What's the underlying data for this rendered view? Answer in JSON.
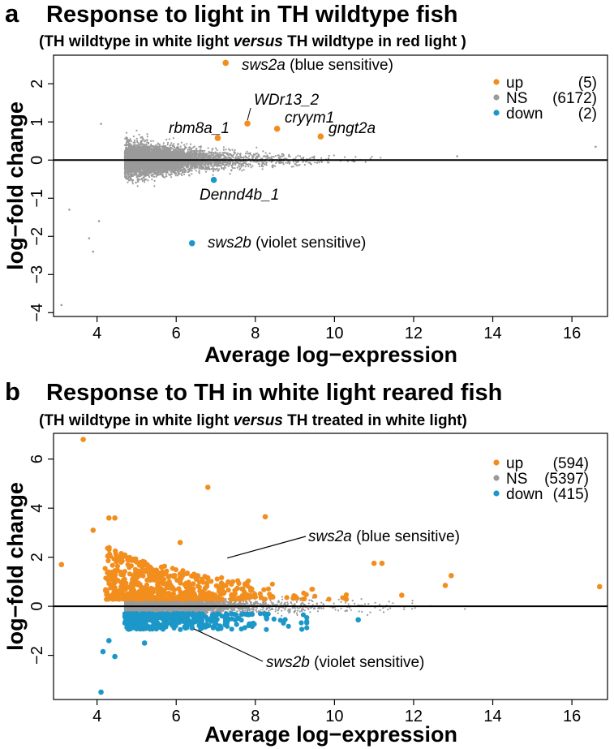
{
  "colors": {
    "up": "#f28e1e",
    "ns": "#9a9a9a",
    "down": "#1b97c8",
    "text": "#000000"
  },
  "panels": [
    {
      "letter": "a",
      "title": "Response to light in TH wildtype fish",
      "subtitle": {
        "open": "(TH wildtype in white light ",
        "italic": "versus",
        "close": " TH wildtype in red light )"
      },
      "legend": [
        {
          "label": "up",
          "count": "(5)",
          "color": "#f28e1e"
        },
        {
          "label": "NS",
          "count": "(6172)",
          "color": "#9a9a9a"
        },
        {
          "label": "down",
          "count": "(2)",
          "color": "#1b97c8"
        }
      ]
    },
    {
      "letter": "b",
      "title": "Response to TH in white light reared fish",
      "subtitle": {
        "open": "(TH wildtype in white light ",
        "italic": "versus",
        "close": " TH treated in white light)"
      },
      "legend": [
        {
          "label": "up",
          "count": "(594)",
          "color": "#f28e1e"
        },
        {
          "label": "NS",
          "count": "(5397)",
          "color": "#9a9a9a"
        },
        {
          "label": "down",
          "count": "(415)",
          "color": "#1b97c8"
        }
      ]
    }
  ],
  "chart_data": [
    {
      "type": "scatter",
      "title": "Response to light in TH wildtype fish",
      "subtitle": "(TH wildtype in white light versus TH wildtype in red light )",
      "xlabel": "Average log−expression",
      "ylabel": "log−fold change",
      "xlim": [
        2.9,
        16.9
      ],
      "ylim": [
        -4.1,
        2.75
      ],
      "xticks": [
        4,
        6,
        8,
        10,
        12,
        14,
        16
      ],
      "yticks": [
        -4,
        -3,
        -2,
        -1,
        0,
        1,
        2
      ],
      "hline": 0,
      "series": [
        {
          "name": "up",
          "count": 5,
          "color": "#f28e1e"
        },
        {
          "name": "NS",
          "count": 6172,
          "color": "#9a9a9a"
        },
        {
          "name": "down",
          "count": 2,
          "color": "#1b97c8"
        }
      ],
      "highlighted": [
        {
          "gene": "sws2a",
          "note": " (blue sensitive)",
          "group": "up",
          "x": 7.25,
          "y": 2.55
        },
        {
          "gene": "WDr13_2",
          "note": "",
          "group": "up",
          "x": 7.8,
          "y": 0.96
        },
        {
          "gene": "cryγm1",
          "note": "",
          "group": "up",
          "x": 8.55,
          "y": 0.82
        },
        {
          "gene": "rbm8a_1",
          "note": "",
          "group": "up",
          "x": 7.05,
          "y": 0.58
        },
        {
          "gene": "gngt2a",
          "note": "",
          "group": "up",
          "x": 9.65,
          "y": 0.62
        },
        {
          "gene": "Dennd4b_1",
          "note": "",
          "group": "down",
          "x": 6.95,
          "y": -0.52
        },
        {
          "gene": "sws2b",
          "note": " (violet sensitive)",
          "group": "down",
          "x": 6.4,
          "y": -2.18
        }
      ],
      "ns_outliers": [
        {
          "x": 3.1,
          "y": -3.8
        },
        {
          "x": 3.3,
          "y": -1.3
        },
        {
          "x": 3.8,
          "y": -2.05
        },
        {
          "x": 3.9,
          "y": -2.4
        },
        {
          "x": 4.05,
          "y": -1.6
        },
        {
          "x": 4.1,
          "y": 0.95
        },
        {
          "x": 13.1,
          "y": 0.1
        },
        {
          "x": 16.6,
          "y": 0.35
        }
      ]
    },
    {
      "type": "scatter",
      "title": "Response to TH in white light reared fish",
      "subtitle": "(TH wildtype in white light versus TH treated in white light)",
      "xlabel": "Average log−expression",
      "ylabel": "log−fold change",
      "xlim": [
        2.9,
        16.9
      ],
      "ylim": [
        -3.8,
        7.05
      ],
      "xticks": [
        4,
        6,
        8,
        10,
        12,
        14,
        16
      ],
      "yticks": [
        -2,
        0,
        2,
        4,
        6
      ],
      "hline": 0,
      "series": [
        {
          "name": "up",
          "count": 594,
          "color": "#f28e1e"
        },
        {
          "name": "NS",
          "count": 5397,
          "color": "#9a9a9a"
        },
        {
          "name": "down",
          "count": 415,
          "color": "#1b97c8"
        }
      ],
      "highlighted": [
        {
          "gene": "sws2a",
          "note": " (blue sensitive)",
          "group": "up",
          "x": 7.25,
          "y": 1.9
        },
        {
          "gene": "sws2b",
          "note": " (violet sensitive)",
          "group": "down",
          "x": 6.4,
          "y": -0.85
        }
      ],
      "up_outliers": [
        {
          "x": 3.65,
          "y": 6.8
        },
        {
          "x": 6.8,
          "y": 4.85
        },
        {
          "x": 3.1,
          "y": 1.7
        },
        {
          "x": 3.9,
          "y": 3.1
        },
        {
          "x": 4.3,
          "y": 3.6
        },
        {
          "x": 4.45,
          "y": 3.6
        },
        {
          "x": 8.25,
          "y": 3.65
        },
        {
          "x": 6.1,
          "y": 2.6
        },
        {
          "x": 11.0,
          "y": 1.75
        },
        {
          "x": 11.2,
          "y": 1.75
        },
        {
          "x": 12.95,
          "y": 1.25
        },
        {
          "x": 12.8,
          "y": 0.85
        },
        {
          "x": 16.7,
          "y": 0.8
        },
        {
          "x": 11.7,
          "y": 0.45
        }
      ],
      "down_outliers": [
        {
          "x": 4.1,
          "y": -3.5
        },
        {
          "x": 4.15,
          "y": -1.85
        },
        {
          "x": 4.45,
          "y": -2.05
        },
        {
          "x": 4.3,
          "y": -1.4
        },
        {
          "x": 5.2,
          "y": -1.5
        },
        {
          "x": 10.6,
          "y": -0.55
        }
      ]
    }
  ],
  "labels": {
    "a_sws2a": {
      "gene": "sws2a",
      "note": " (blue sensitive)"
    },
    "a_wdr": "WDr13_2",
    "a_cry": "cryγm1",
    "a_rbm": "rbm8a_1",
    "a_gngt": "gngt2a",
    "a_dennd": "Dennd4b_1",
    "a_sws2b": {
      "gene": "sws2b",
      "note": " (violet sensitive)"
    },
    "b_sws2a": {
      "gene": "sws2a",
      "note": " (blue sensitive)"
    },
    "b_sws2b": {
      "gene": "sws2b",
      "note": " (violet sensitive)"
    }
  }
}
